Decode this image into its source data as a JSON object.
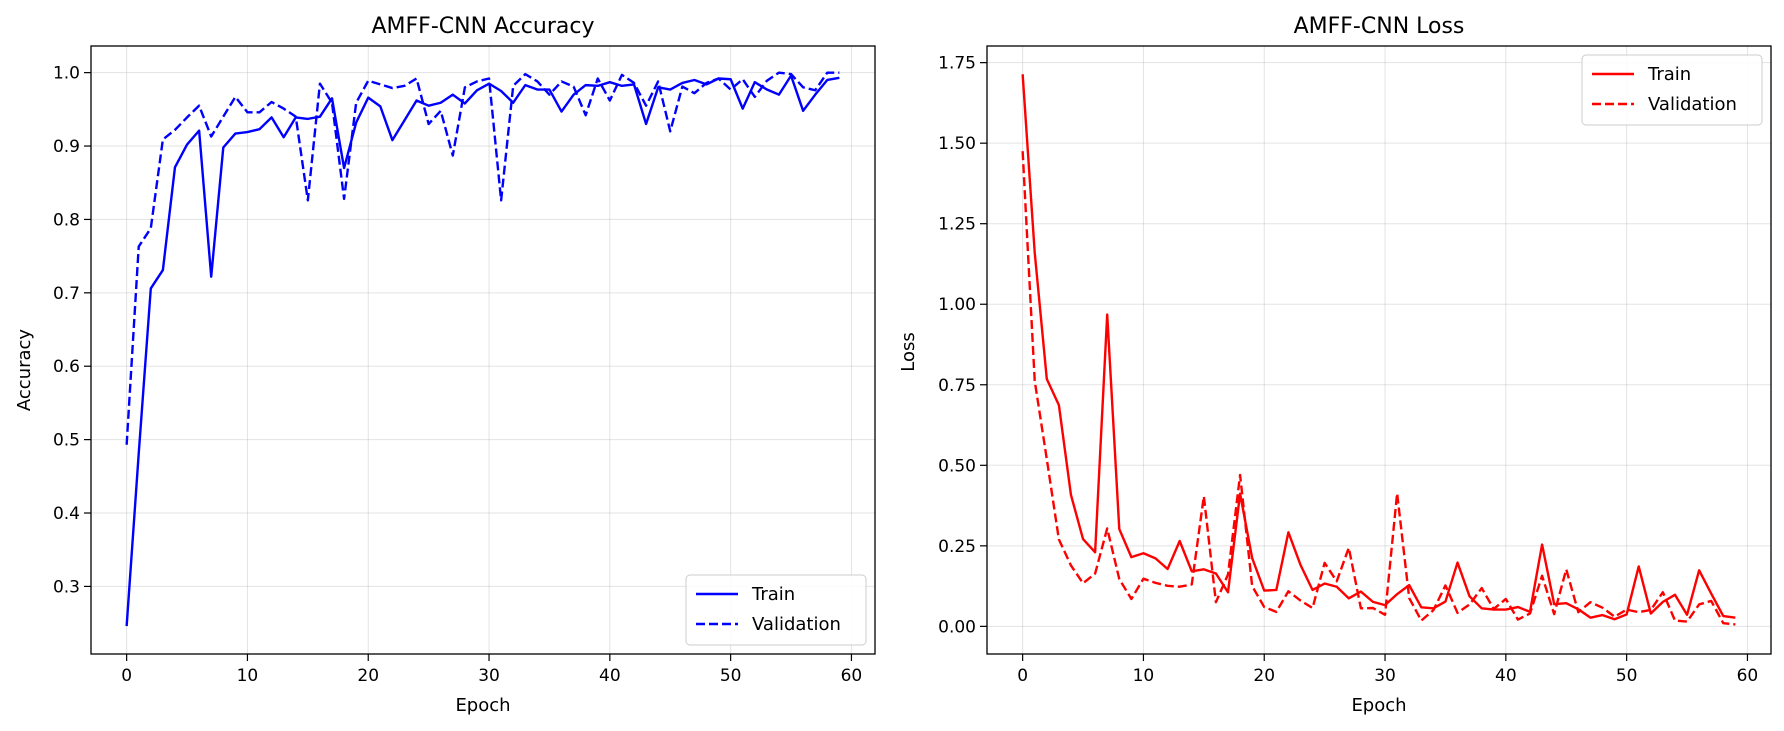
{
  "chart_data": [
    {
      "type": "line",
      "title": "AMFF-CNN Accuracy",
      "xlabel": "Epoch",
      "ylabel": "Accuracy",
      "xlim": [
        -2.95,
        61.95
      ],
      "ylim": [
        0.2079,
        1.0363
      ],
      "xticks": [
        0,
        10,
        20,
        30,
        40,
        50,
        60
      ],
      "yticks": [
        0.3,
        0.4,
        0.5,
        0.6,
        0.7,
        0.8,
        0.9,
        1.0
      ],
      "ytick_labels": [
        "0.3",
        "0.4",
        "0.5",
        "0.6",
        "0.7",
        "0.8",
        "0.9",
        "1.0"
      ],
      "grid": true,
      "legend": "lower right",
      "color": "#0000ff",
      "series": [
        {
          "name": "Train",
          "style": "solid",
          "x": [
            0,
            1,
            2,
            3,
            4,
            5,
            6,
            7,
            8,
            9,
            10,
            11,
            12,
            13,
            14,
            15,
            16,
            17,
            18,
            19,
            20,
            21,
            22,
            23,
            24,
            25,
            26,
            27,
            28,
            29,
            30,
            31,
            32,
            33,
            34,
            35,
            36,
            37,
            38,
            39,
            40,
            41,
            42,
            43,
            44,
            45,
            46,
            47,
            48,
            49,
            50,
            51,
            52,
            53,
            54,
            55,
            56,
            57,
            58,
            59
          ],
          "values": [
            0.246,
            0.481,
            0.706,
            0.731,
            0.871,
            0.902,
            0.921,
            0.722,
            0.898,
            0.917,
            0.919,
            0.923,
            0.939,
            0.912,
            0.939,
            0.937,
            0.94,
            0.965,
            0.87,
            0.932,
            0.966,
            0.954,
            0.908,
            0.935,
            0.962,
            0.955,
            0.959,
            0.97,
            0.958,
            0.976,
            0.985,
            0.975,
            0.959,
            0.983,
            0.977,
            0.977,
            0.947,
            0.97,
            0.983,
            0.982,
            0.987,
            0.982,
            0.984,
            0.93,
            0.98,
            0.977,
            0.986,
            0.99,
            0.984,
            0.992,
            0.991,
            0.951,
            0.987,
            0.977,
            0.97,
            0.996,
            0.948,
            0.97,
            0.99,
            0.993
          ]
        },
        {
          "name": "Validation",
          "style": "dashed",
          "x": [
            0,
            1,
            2,
            3,
            4,
            5,
            6,
            7,
            8,
            9,
            10,
            11,
            12,
            13,
            14,
            15,
            16,
            17,
            18,
            19,
            20,
            21,
            22,
            23,
            24,
            25,
            26,
            27,
            28,
            29,
            30,
            31,
            32,
            33,
            34,
            35,
            36,
            37,
            38,
            39,
            40,
            41,
            42,
            43,
            44,
            45,
            46,
            47,
            48,
            49,
            50,
            51,
            52,
            53,
            54,
            55,
            56,
            57,
            58,
            59
          ],
          "values": [
            0.493,
            0.763,
            0.788,
            0.909,
            0.922,
            0.939,
            0.955,
            0.913,
            0.94,
            0.967,
            0.946,
            0.946,
            0.96,
            0.951,
            0.94,
            0.826,
            0.985,
            0.959,
            0.828,
            0.959,
            0.989,
            0.984,
            0.979,
            0.982,
            0.992,
            0.93,
            0.948,
            0.887,
            0.98,
            0.988,
            0.992,
            0.826,
            0.982,
            0.998,
            0.988,
            0.97,
            0.988,
            0.981,
            0.942,
            0.992,
            0.962,
            0.997,
            0.986,
            0.955,
            0.988,
            0.92,
            0.981,
            0.972,
            0.986,
            0.992,
            0.977,
            0.991,
            0.967,
            0.989,
            1.0,
            0.998,
            0.98,
            0.976,
            1.0,
            1.0
          ]
        }
      ]
    },
    {
      "type": "line",
      "title": "AMFF-CNN Loss",
      "xlabel": "Epoch",
      "ylabel": "Loss",
      "xlim": [
        -2.95,
        61.95
      ],
      "ylim": [
        -0.0858,
        1.8017
      ],
      "xticks": [
        0,
        10,
        20,
        30,
        40,
        50,
        60
      ],
      "yticks": [
        0.0,
        0.25,
        0.5,
        0.75,
        1.0,
        1.25,
        1.5,
        1.75
      ],
      "ytick_labels": [
        "0.00",
        "0.25",
        "0.50",
        "0.75",
        "1.00",
        "1.25",
        "1.50",
        "1.75"
      ],
      "grid": true,
      "legend": "upper right",
      "color": "#ff0000",
      "series": [
        {
          "name": "Train",
          "style": "solid",
          "x": [
            0,
            1,
            2,
            3,
            4,
            5,
            6,
            7,
            8,
            9,
            10,
            11,
            12,
            13,
            14,
            15,
            16,
            17,
            18,
            19,
            20,
            21,
            22,
            23,
            24,
            25,
            26,
            27,
            28,
            29,
            30,
            31,
            32,
            33,
            34,
            35,
            36,
            37,
            38,
            39,
            40,
            41,
            42,
            43,
            44,
            45,
            46,
            47,
            48,
            49,
            50,
            51,
            52,
            53,
            54,
            55,
            56,
            57,
            58,
            59
          ],
          "values": [
            1.714,
            1.16,
            0.768,
            0.687,
            0.408,
            0.271,
            0.23,
            0.968,
            0.302,
            0.215,
            0.227,
            0.211,
            0.178,
            0.265,
            0.171,
            0.177,
            0.164,
            0.106,
            0.412,
            0.212,
            0.111,
            0.113,
            0.292,
            0.191,
            0.113,
            0.133,
            0.123,
            0.087,
            0.108,
            0.076,
            0.066,
            0.1,
            0.128,
            0.059,
            0.056,
            0.077,
            0.198,
            0.093,
            0.056,
            0.052,
            0.052,
            0.06,
            0.045,
            0.254,
            0.069,
            0.072,
            0.053,
            0.027,
            0.035,
            0.022,
            0.037,
            0.186,
            0.04,
            0.076,
            0.098,
            0.036,
            0.174,
            0.102,
            0.032,
            0.027
          ]
        },
        {
          "name": "Validation",
          "style": "dashed",
          "x": [
            0,
            1,
            2,
            3,
            4,
            5,
            6,
            7,
            8,
            9,
            10,
            11,
            12,
            13,
            14,
            15,
            16,
            17,
            18,
            19,
            20,
            21,
            22,
            23,
            24,
            25,
            26,
            27,
            28,
            29,
            30,
            31,
            32,
            33,
            34,
            35,
            36,
            37,
            38,
            39,
            40,
            41,
            42,
            43,
            44,
            45,
            46,
            47,
            48,
            49,
            50,
            51,
            52,
            53,
            54,
            55,
            56,
            57,
            58,
            59
          ],
          "values": [
            1.475,
            0.762,
            0.519,
            0.27,
            0.189,
            0.134,
            0.164,
            0.304,
            0.147,
            0.085,
            0.148,
            0.135,
            0.126,
            0.123,
            0.13,
            0.404,
            0.075,
            0.161,
            0.47,
            0.125,
            0.06,
            0.045,
            0.109,
            0.08,
            0.057,
            0.197,
            0.14,
            0.244,
            0.056,
            0.057,
            0.036,
            0.413,
            0.088,
            0.018,
            0.05,
            0.127,
            0.042,
            0.068,
            0.119,
            0.054,
            0.085,
            0.021,
            0.04,
            0.157,
            0.038,
            0.177,
            0.044,
            0.075,
            0.058,
            0.03,
            0.052,
            0.044,
            0.051,
            0.106,
            0.018,
            0.015,
            0.068,
            0.079,
            0.01,
            0.006
          ]
        }
      ]
    }
  ]
}
